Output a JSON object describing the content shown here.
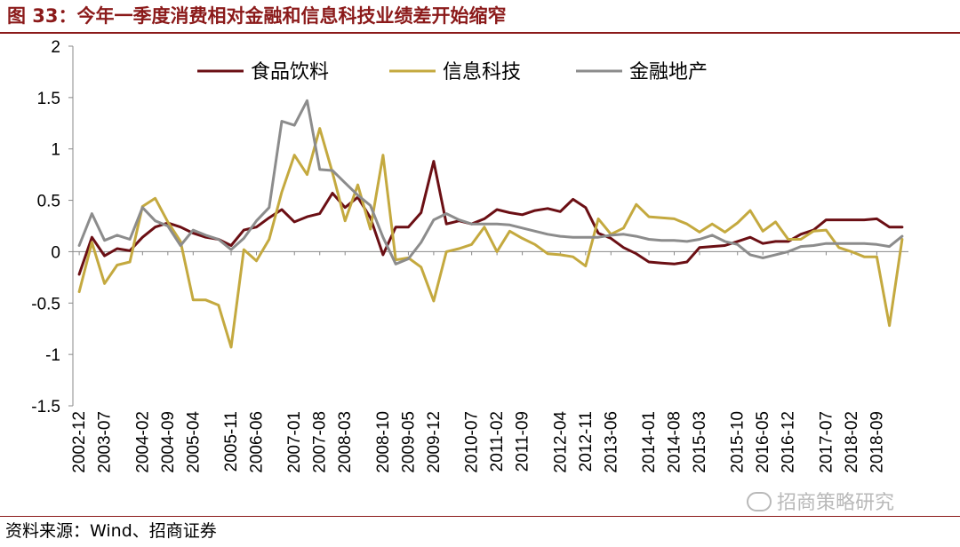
{
  "figure": {
    "title": "图 33：今年一季度消费相对金融和信息科技业绩差开始缩窄",
    "source": "资料来源：Wind、招商证券",
    "watermark": "招商策略研究",
    "title_color": "#8b1a1a"
  },
  "chart_data": {
    "type": "line",
    "title": "",
    "xlabel": "",
    "ylabel": "",
    "ylim": [
      -1.5,
      2
    ],
    "yticks": [
      "2",
      "1.5",
      "1",
      "0.5",
      "0",
      "-0.5",
      "-1",
      "-1.5"
    ],
    "ytick_values": [
      2,
      1.5,
      1,
      0.5,
      0,
      -0.5,
      -1,
      -1.5
    ],
    "grid": false,
    "legend_position": "top",
    "x": [
      "2002-12",
      "2003-03",
      "2003-06",
      "2003-09",
      "2003-12",
      "2004-03",
      "2004-06",
      "2004-09",
      "2004-12",
      "2005-03",
      "2005-06",
      "2005-09",
      "2005-12",
      "2006-03",
      "2006-06",
      "2006-09",
      "2006-12",
      "2007-03",
      "2007-06",
      "2007-09",
      "2007-12",
      "2008-03",
      "2008-06",
      "2008-09",
      "2008-12",
      "2009-03",
      "2009-06",
      "2009-09",
      "2009-12",
      "2010-03",
      "2010-06",
      "2010-09",
      "2010-12",
      "2011-03",
      "2011-06",
      "2011-09",
      "2011-12",
      "2012-03",
      "2012-06",
      "2012-09",
      "2012-12",
      "2013-03",
      "2013-06",
      "2013-09",
      "2013-12",
      "2014-03",
      "2014-06",
      "2014-09",
      "2014-12",
      "2015-03",
      "2015-06",
      "2015-09",
      "2015-12",
      "2016-03",
      "2016-06",
      "2016-09",
      "2016-12",
      "2017-03",
      "2017-06",
      "2017-09",
      "2017-12",
      "2018-03",
      "2018-06",
      "2018-09",
      "2018-12",
      "2019-03"
    ],
    "xtick_labels": [
      {
        "i": 0,
        "label": "2002-12"
      },
      {
        "i": 2,
        "label": "2003-07"
      },
      {
        "i": 5,
        "label": "2004-02"
      },
      {
        "i": 7,
        "label": "2004-09"
      },
      {
        "i": 9,
        "label": "2005-04"
      },
      {
        "i": 12,
        "label": "2005-11"
      },
      {
        "i": 14,
        "label": "2006-06"
      },
      {
        "i": 17,
        "label": "2007-01"
      },
      {
        "i": 19,
        "label": "2007-08"
      },
      {
        "i": 21,
        "label": "2008-03"
      },
      {
        "i": 24,
        "label": "2008-10"
      },
      {
        "i": 26,
        "label": "2009-05"
      },
      {
        "i": 28,
        "label": "2009-12"
      },
      {
        "i": 31,
        "label": "2010-07"
      },
      {
        "i": 33,
        "label": "2011-02"
      },
      {
        "i": 35,
        "label": "2011-09"
      },
      {
        "i": 38,
        "label": "2012-04"
      },
      {
        "i": 40,
        "label": "2012-11"
      },
      {
        "i": 42,
        "label": "2013-06"
      },
      {
        "i": 45,
        "label": "2014-01"
      },
      {
        "i": 47,
        "label": "2014-08"
      },
      {
        "i": 49,
        "label": "2015-03"
      },
      {
        "i": 52,
        "label": "2015-10"
      },
      {
        "i": 54,
        "label": "2016-05"
      },
      {
        "i": 56,
        "label": "2016-12"
      },
      {
        "i": 59,
        "label": "2017-07"
      },
      {
        "i": 61,
        "label": "2018-02"
      },
      {
        "i": 63,
        "label": "2018-09"
      }
    ],
    "series": [
      {
        "name": "食品饮料",
        "color": "#6b0f14",
        "values": [
          -0.22,
          0.14,
          -0.04,
          0.03,
          0.01,
          0.14,
          0.24,
          0.28,
          0.24,
          0.18,
          0.14,
          0.12,
          0.06,
          0.21,
          0.24,
          0.33,
          0.41,
          0.29,
          0.34,
          0.37,
          0.57,
          0.43,
          0.53,
          0.33,
          -0.03,
          0.24,
          0.24,
          0.38,
          0.88,
          0.27,
          0.3,
          0.27,
          0.32,
          0.41,
          0.38,
          0.36,
          0.4,
          0.42,
          0.39,
          0.51,
          0.43,
          0.18,
          0.13,
          0.04,
          -0.02,
          -0.1,
          -0.11,
          -0.12,
          -0.1,
          0.04,
          0.05,
          0.06,
          0.1,
          0.14,
          0.08,
          0.1,
          0.1,
          0.17,
          0.21,
          0.31,
          0.31,
          0.31,
          0.31,
          0.32,
          0.24,
          0.24
        ]
      },
      {
        "name": "信息科技",
        "color": "#c4a93f",
        "values": [
          -0.39,
          0.09,
          -0.31,
          -0.13,
          -0.1,
          0.44,
          0.52,
          0.29,
          0.1,
          -0.47,
          -0.47,
          -0.52,
          -0.93,
          0.02,
          -0.09,
          0.12,
          0.58,
          0.94,
          0.75,
          1.2,
          0.77,
          0.3,
          0.65,
          0.22,
          0.94,
          -0.08,
          -0.06,
          -0.15,
          -0.48,
          0.0,
          0.03,
          0.07,
          0.24,
          0.0,
          0.2,
          0.13,
          0.07,
          -0.02,
          -0.03,
          -0.05,
          -0.14,
          0.32,
          0.17,
          0.23,
          0.46,
          0.34,
          0.33,
          0.32,
          0.27,
          0.19,
          0.27,
          0.19,
          0.28,
          0.4,
          0.2,
          0.29,
          0.12,
          0.12,
          0.2,
          0.21,
          0.04,
          0.0,
          -0.05,
          -0.05,
          -0.72,
          0.12
        ]
      },
      {
        "name": "金融地产",
        "color": "#8c8c8c",
        "values": [
          0.06,
          0.37,
          0.11,
          0.16,
          0.12,
          0.43,
          0.3,
          0.25,
          0.06,
          0.21,
          0.16,
          0.12,
          0.02,
          0.13,
          0.3,
          0.43,
          1.27,
          1.23,
          1.47,
          0.8,
          0.79,
          0.67,
          0.55,
          0.45,
          0.14,
          -0.12,
          -0.07,
          0.09,
          0.31,
          0.37,
          0.31,
          0.27,
          0.27,
          0.27,
          0.26,
          0.23,
          0.2,
          0.17,
          0.15,
          0.14,
          0.14,
          0.14,
          0.16,
          0.17,
          0.15,
          0.12,
          0.11,
          0.11,
          0.1,
          0.12,
          0.16,
          0.1,
          0.07,
          -0.03,
          -0.06,
          -0.03,
          0.0,
          0.05,
          0.06,
          0.08,
          0.08,
          0.08,
          0.08,
          0.07,
          0.05,
          0.15
        ]
      }
    ]
  }
}
